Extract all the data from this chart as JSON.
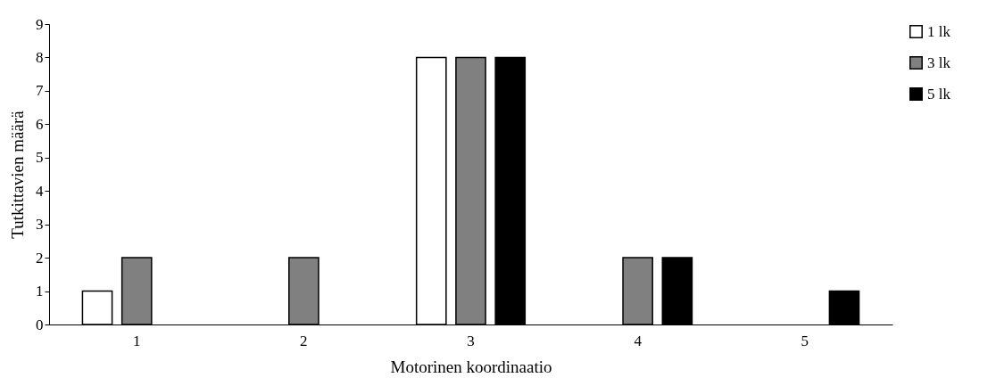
{
  "chart_data": {
    "type": "bar",
    "xlabel": "Motorinen koordinaatio",
    "ylabel": "Tutkittavien määrä",
    "categories": [
      "1",
      "2",
      "3",
      "4",
      "5"
    ],
    "series": [
      {
        "name": "1 lk",
        "color": "#ffffff",
        "values": [
          1,
          null,
          8,
          null,
          null
        ]
      },
      {
        "name": "3 lk",
        "color": "#808080",
        "values": [
          2,
          2,
          8,
          2,
          null
        ]
      },
      {
        "name": "5 lk",
        "color": "#000000",
        "values": [
          null,
          null,
          8,
          2,
          1
        ]
      }
    ],
    "ylim": [
      0,
      9
    ],
    "yticks": [
      0,
      1,
      2,
      3,
      4,
      5,
      6,
      7,
      8,
      9
    ],
    "grid": false,
    "legend": "right"
  }
}
